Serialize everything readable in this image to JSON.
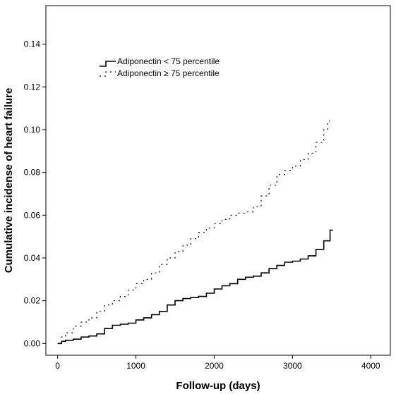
{
  "chart_data": {
    "type": "line",
    "xlabel": "Follow-up (days)",
    "ylabel": "Cumulative incidense of heart failure",
    "xlim": [
      -150,
      4250
    ],
    "ylim": [
      -0.0055,
      0.158
    ],
    "x_ticks": [
      0,
      1000,
      2000,
      3000,
      4000
    ],
    "x_tick_labels": [
      "0",
      "1000",
      "2000",
      "3000",
      "4000"
    ],
    "y_ticks": [
      0.0,
      0.02,
      0.04,
      0.06,
      0.08,
      0.1,
      0.12,
      0.14
    ],
    "y_tick_labels": [
      "0.00",
      "0.02",
      "0.04",
      "0.06",
      "0.08",
      "0.10",
      "0.12",
      "0.14"
    ],
    "grid": false,
    "legend": {
      "placement": "top-left"
    },
    "series": [
      {
        "name": "Adiponectin < 75 percentile",
        "style": "solid",
        "color": "#000000",
        "points": [
          [
            0,
            0.0
          ],
          [
            50,
            0.001
          ],
          [
            100,
            0.0015
          ],
          [
            200,
            0.002
          ],
          [
            300,
            0.003
          ],
          [
            400,
            0.0035
          ],
          [
            500,
            0.0045
          ],
          [
            600,
            0.007
          ],
          [
            700,
            0.0085
          ],
          [
            800,
            0.009
          ],
          [
            900,
            0.0095
          ],
          [
            1000,
            0.011
          ],
          [
            1100,
            0.012
          ],
          [
            1200,
            0.0135
          ],
          [
            1300,
            0.015
          ],
          [
            1400,
            0.018
          ],
          [
            1500,
            0.02
          ],
          [
            1600,
            0.021
          ],
          [
            1700,
            0.0215
          ],
          [
            1800,
            0.022
          ],
          [
            1900,
            0.0235
          ],
          [
            2000,
            0.0255
          ],
          [
            2100,
            0.027
          ],
          [
            2200,
            0.028
          ],
          [
            2300,
            0.03
          ],
          [
            2400,
            0.031
          ],
          [
            2500,
            0.0315
          ],
          [
            2600,
            0.033
          ],
          [
            2700,
            0.035
          ],
          [
            2800,
            0.0365
          ],
          [
            2900,
            0.038
          ],
          [
            3000,
            0.0385
          ],
          [
            3100,
            0.0395
          ],
          [
            3200,
            0.041
          ],
          [
            3300,
            0.044
          ],
          [
            3400,
            0.048
          ],
          [
            3480,
            0.053
          ],
          [
            3520,
            0.053
          ]
        ]
      },
      {
        "name": "Adiponectin ≥ 75 percentile",
        "style": "dotted",
        "color": "#000000",
        "points": [
          [
            0,
            0.0
          ],
          [
            50,
            0.003
          ],
          [
            100,
            0.005
          ],
          [
            200,
            0.008
          ],
          [
            300,
            0.01
          ],
          [
            400,
            0.012
          ],
          [
            500,
            0.015
          ],
          [
            600,
            0.018
          ],
          [
            700,
            0.02
          ],
          [
            800,
            0.022
          ],
          [
            900,
            0.025
          ],
          [
            1000,
            0.028
          ],
          [
            1100,
            0.03
          ],
          [
            1200,
            0.033
          ],
          [
            1300,
            0.037
          ],
          [
            1400,
            0.04
          ],
          [
            1500,
            0.043
          ],
          [
            1600,
            0.046
          ],
          [
            1700,
            0.049
          ],
          [
            1800,
            0.052
          ],
          [
            1900,
            0.054
          ],
          [
            2000,
            0.056
          ],
          [
            2100,
            0.058
          ],
          [
            2200,
            0.06
          ],
          [
            2300,
            0.061
          ],
          [
            2400,
            0.0615
          ],
          [
            2500,
            0.064
          ],
          [
            2600,
            0.069
          ],
          [
            2700,
            0.074
          ],
          [
            2800,
            0.079
          ],
          [
            2900,
            0.081
          ],
          [
            3000,
            0.083
          ],
          [
            3100,
            0.086
          ],
          [
            3200,
            0.089
          ],
          [
            3300,
            0.094
          ],
          [
            3400,
            0.1
          ],
          [
            3450,
            0.104
          ],
          [
            3480,
            0.104
          ]
        ]
      }
    ]
  }
}
